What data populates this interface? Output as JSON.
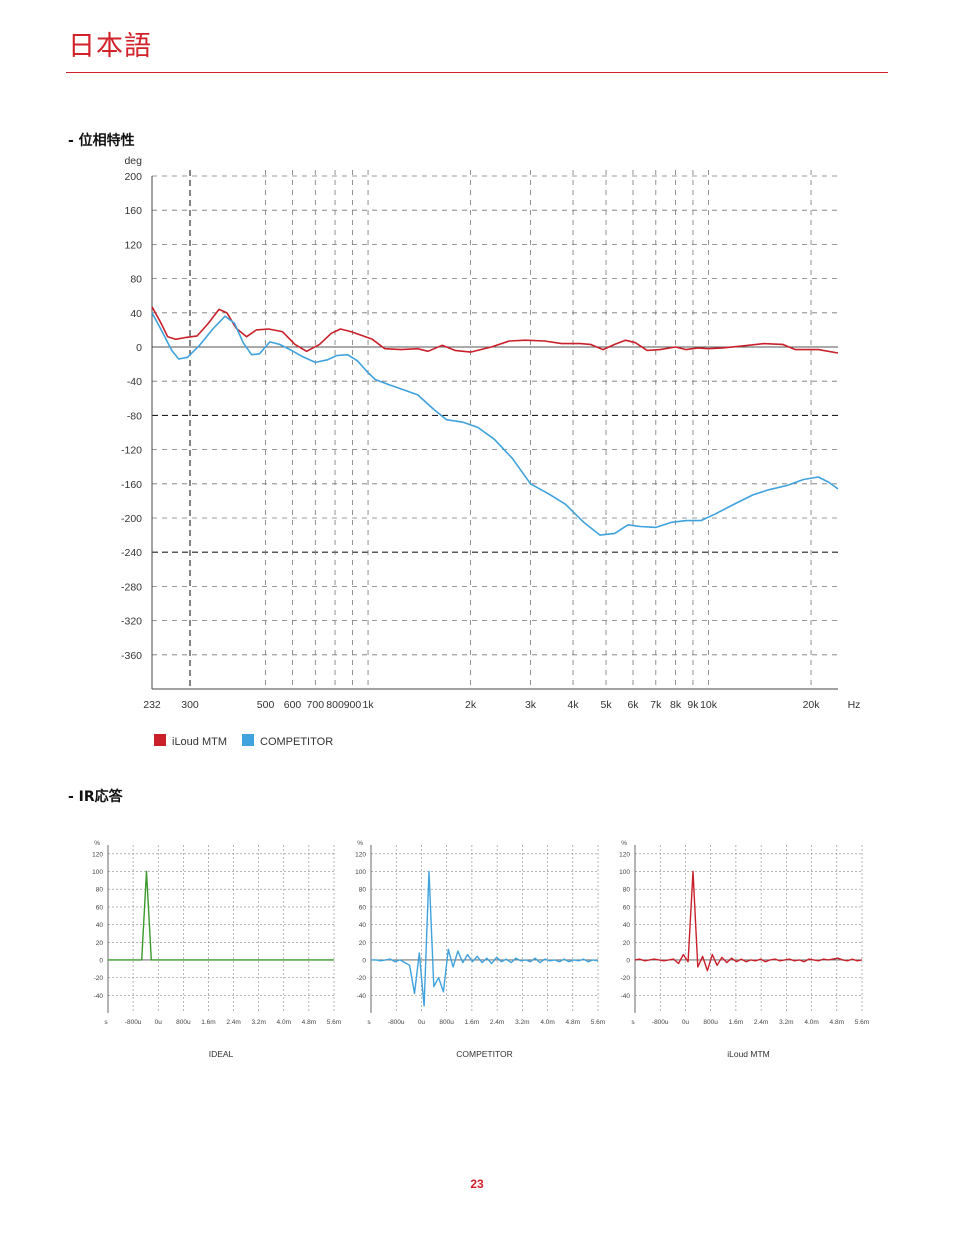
{
  "header": {
    "title": "日本語"
  },
  "sections": {
    "phase_title": "- 位相特性",
    "ir_title": "- IR応答"
  },
  "page_number": "23",
  "colors": {
    "accent": "#d2232a",
    "iloud": "#c9202a",
    "competitor": "#3fa2dc",
    "ideal": "#3a9a2a"
  },
  "chart_data": [
    {
      "type": "line",
      "title": "",
      "xlabel": "Hz",
      "ylabel": "deg",
      "x_scale": "log",
      "xlim": [
        232,
        24000
      ],
      "ylim": [
        -400,
        200
      ],
      "y_ticks": [
        "200",
        "160",
        "120",
        "80",
        "40",
        "0",
        "-40",
        "-80",
        "-120",
        "-160",
        "-200",
        "-240",
        "-280",
        "-320",
        "-360"
      ],
      "x_ticks": [
        {
          "v": 232,
          "t": "232"
        },
        {
          "v": 300,
          "t": "300"
        },
        {
          "v": 500,
          "t": "500"
        },
        {
          "v": 600,
          "t": "600"
        },
        {
          "v": 700,
          "t": "700"
        },
        {
          "v": 800,
          "t": "800"
        },
        {
          "v": 900,
          "t": "900"
        },
        {
          "v": 1000,
          "t": "1k"
        },
        {
          "v": 2000,
          "t": "2k"
        },
        {
          "v": 3000,
          "t": "3k"
        },
        {
          "v": 4000,
          "t": "4k"
        },
        {
          "v": 5000,
          "t": "5k"
        },
        {
          "v": 6000,
          "t": "6k"
        },
        {
          "v": 7000,
          "t": "7k"
        },
        {
          "v": 8000,
          "t": "8k"
        },
        {
          "v": 9000,
          "t": "9k"
        },
        {
          "v": 10000,
          "t": "10k"
        },
        {
          "v": 20000,
          "t": "20k"
        }
      ],
      "grid": true,
      "legend": "bottom-left",
      "series": [
        {
          "name": "iLoud MTM",
          "color": "#c9202a",
          "points": [
            [
              232,
              47
            ],
            [
              245,
              30
            ],
            [
              258,
              12
            ],
            [
              272,
              9
            ],
            [
              290,
              11
            ],
            [
              315,
              13
            ],
            [
              340,
              28
            ],
            [
              365,
              44
            ],
            [
              385,
              40
            ],
            [
              410,
              22
            ],
            [
              440,
              12
            ],
            [
              470,
              20
            ],
            [
              510,
              21
            ],
            [
              560,
              18
            ],
            [
              610,
              3
            ],
            [
              660,
              -5
            ],
            [
              720,
              3
            ],
            [
              780,
              16
            ],
            [
              830,
              21
            ],
            [
              890,
              18
            ],
            [
              950,
              14
            ],
            [
              1030,
              9
            ],
            [
              1120,
              -2
            ],
            [
              1250,
              -3
            ],
            [
              1400,
              -2
            ],
            [
              1500,
              -5
            ],
            [
              1650,
              2
            ],
            [
              1800,
              -4
            ],
            [
              2000,
              -6
            ],
            [
              2300,
              0
            ],
            [
              2600,
              7
            ],
            [
              2900,
              8
            ],
            [
              3300,
              7
            ],
            [
              3700,
              4
            ],
            [
              4200,
              4
            ],
            [
              4500,
              3
            ],
            [
              4900,
              -3
            ],
            [
              5300,
              3
            ],
            [
              5700,
              8
            ],
            [
              6100,
              5
            ],
            [
              6600,
              -4
            ],
            [
              7200,
              -3
            ],
            [
              8000,
              0
            ],
            [
              8600,
              -3
            ],
            [
              9300,
              -1
            ],
            [
              10000,
              -2
            ],
            [
              11000,
              -1
            ],
            [
              12500,
              1
            ],
            [
              14500,
              4
            ],
            [
              16500,
              3
            ],
            [
              18000,
              -3
            ],
            [
              21000,
              -3
            ],
            [
              24000,
              -7
            ]
          ]
        },
        {
          "name": "COMPETITOR",
          "color": "#3fa2dc",
          "points": [
            [
              232,
              40
            ],
            [
              250,
              16
            ],
            [
              265,
              -4
            ],
            [
              278,
              -14
            ],
            [
              295,
              -12
            ],
            [
              320,
              2
            ],
            [
              350,
              21
            ],
            [
              380,
              36
            ],
            [
              405,
              28
            ],
            [
              430,
              5
            ],
            [
              455,
              -9
            ],
            [
              480,
              -8
            ],
            [
              515,
              6
            ],
            [
              550,
              3
            ],
            [
              590,
              -3
            ],
            [
              640,
              -11
            ],
            [
              700,
              -18
            ],
            [
              760,
              -15
            ],
            [
              810,
              -10
            ],
            [
              870,
              -9
            ],
            [
              930,
              -16
            ],
            [
              1000,
              -30
            ],
            [
              1050,
              -38
            ],
            [
              1150,
              -44
            ],
            [
              1270,
              -50
            ],
            [
              1400,
              -56
            ],
            [
              1550,
              -72
            ],
            [
              1700,
              -85
            ],
            [
              1900,
              -88
            ],
            [
              2100,
              -94
            ],
            [
              2350,
              -108
            ],
            [
              2650,
              -130
            ],
            [
              3000,
              -160
            ],
            [
              3400,
              -172
            ],
            [
              3800,
              -184
            ],
            [
              4300,
              -205
            ],
            [
              4800,
              -220
            ],
            [
              5300,
              -218
            ],
            [
              5800,
              -208
            ],
            [
              6300,
              -210
            ],
            [
              7000,
              -211
            ],
            [
              7800,
              -205
            ],
            [
              8600,
              -203
            ],
            [
              9500,
              -203
            ],
            [
              10500,
              -195
            ],
            [
              12000,
              -183
            ],
            [
              13500,
              -173
            ],
            [
              15000,
              -167
            ],
            [
              17000,
              -162
            ],
            [
              19000,
              -155
            ],
            [
              21000,
              -152
            ],
            [
              22500,
              -158
            ],
            [
              24000,
              -166
            ]
          ]
        }
      ]
    },
    {
      "type": "line",
      "title": "IDEAL",
      "ylabel": "%",
      "xlabel": "s",
      "ylim": [
        -60,
        130
      ],
      "y_ticks": [
        "120",
        "100",
        "80",
        "60",
        "40",
        "20",
        "0",
        "-20",
        "-40"
      ],
      "x_ticks": [
        "s",
        "-800u",
        "0u",
        "800u",
        "1.6m",
        "2.4m",
        "3.2m",
        "4.0m",
        "4.8m",
        "5.6m"
      ],
      "series": [
        {
          "name": "",
          "color": "#3a9a2a",
          "values": [
            0,
            0,
            0,
            0,
            0,
            0,
            0,
            0,
            100,
            0,
            0,
            0,
            0,
            0,
            0,
            0,
            0,
            0,
            0,
            0,
            0,
            0,
            0,
            0,
            0,
            0,
            0,
            0,
            0,
            0,
            0,
            0,
            0,
            0,
            0,
            0,
            0,
            0,
            0,
            0,
            0,
            0,
            0,
            0,
            0,
            0,
            0,
            0
          ]
        }
      ]
    },
    {
      "type": "line",
      "title": "COMPETITOR",
      "ylabel": "%",
      "xlabel": "s",
      "ylim": [
        -60,
        130
      ],
      "y_ticks": [
        "120",
        "100",
        "80",
        "60",
        "40",
        "20",
        "0",
        "-20",
        "-40"
      ],
      "x_ticks": [
        "s",
        "-800u",
        "0u",
        "800u",
        "1.6m",
        "2.4m",
        "3.2m",
        "4.0m",
        "4.8m",
        "5.6m"
      ],
      "series": [
        {
          "name": "",
          "color": "#3fa2dc",
          "values": [
            0,
            0,
            -1,
            0,
            1,
            -2,
            0,
            -3,
            -6,
            -38,
            8,
            -52,
            100,
            -30,
            -20,
            -36,
            12,
            -8,
            10,
            -3,
            6,
            -2,
            4,
            -3,
            2,
            -4,
            3,
            -2,
            1,
            -3,
            2,
            -1,
            0,
            -2,
            2,
            -3,
            1,
            -1,
            0,
            -2,
            1,
            -2,
            0,
            -1,
            1,
            -2,
            0,
            -1
          ]
        }
      ]
    },
    {
      "type": "line",
      "title": "iLoud MTM",
      "ylabel": "%",
      "xlabel": "s",
      "ylim": [
        -60,
        130
      ],
      "y_ticks": [
        "120",
        "100",
        "80",
        "60",
        "40",
        "20",
        "0",
        "-20",
        "-40"
      ],
      "x_ticks": [
        "s",
        "-800u",
        "0u",
        "800u",
        "1.6m",
        "2.4m",
        "3.2m",
        "4.0m",
        "4.8m",
        "5.6m"
      ],
      "series": [
        {
          "name": "",
          "color": "#c9202a",
          "values": [
            0,
            1,
            -1,
            0,
            1,
            0,
            -1,
            0,
            1,
            -4,
            6,
            -2,
            100,
            -8,
            4,
            -12,
            6,
            -6,
            3,
            -3,
            2,
            -2,
            1,
            -2,
            0,
            -1,
            1,
            -2,
            0,
            1,
            -1,
            0,
            1,
            -1,
            0,
            -2,
            1,
            0,
            -1,
            1,
            0,
            1,
            2,
            0,
            -1,
            1,
            -1,
            0
          ]
        }
      ]
    }
  ]
}
